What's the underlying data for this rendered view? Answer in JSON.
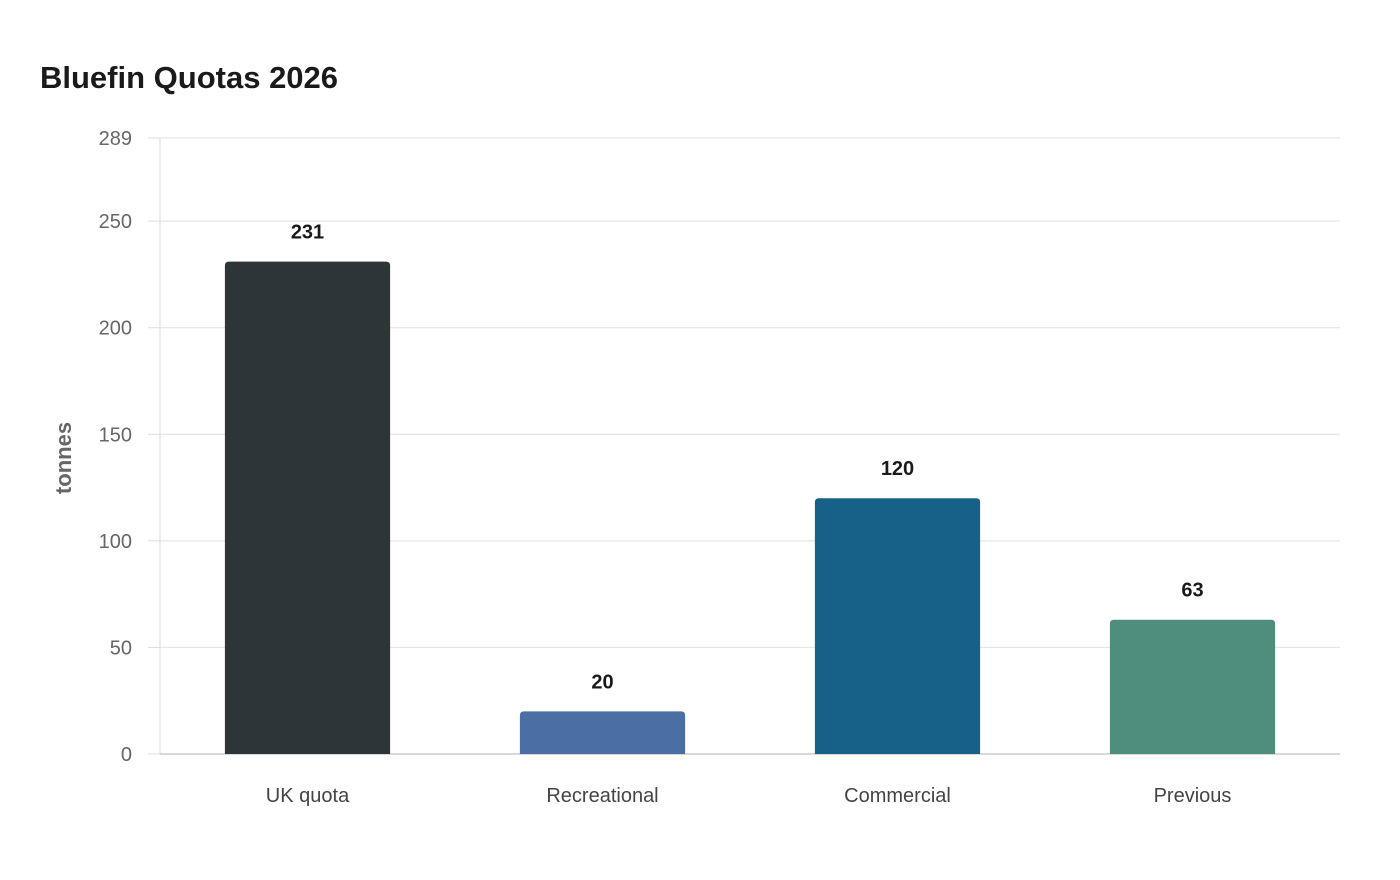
{
  "chart_data": {
    "type": "bar",
    "title": "Bluefin Quotas 2026",
    "ylabel": "tonnes",
    "xlabel": "",
    "categories": [
      "UK quota",
      "Recreational",
      "Commercial",
      "Previous"
    ],
    "values": [
      231,
      20,
      120,
      63
    ],
    "colors": [
      "#2e3538",
      "#4a6fa5",
      "#176087",
      "#4f8d7c"
    ],
    "ylim": [
      0,
      289
    ],
    "yticks": [
      0,
      50,
      100,
      150,
      200,
      250,
      289
    ],
    "grid": true,
    "legend": "none"
  }
}
